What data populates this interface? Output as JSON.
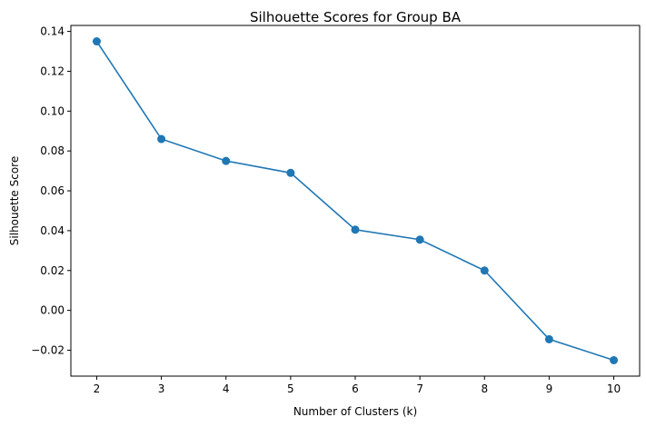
{
  "chart_data": {
    "type": "line",
    "title": "Silhouette Scores for Group BA",
    "xlabel": "Number of Clusters (k)",
    "ylabel": "Silhouette Score",
    "x": [
      2,
      3,
      4,
      5,
      6,
      7,
      8,
      9,
      10
    ],
    "series": [
      {
        "values": [
          0.135,
          0.086,
          0.075,
          0.069,
          0.0405,
          0.0355,
          0.02,
          -0.0145,
          -0.025
        ],
        "color": "#1f77b4",
        "marker": "circle"
      }
    ],
    "xticks": [
      "2",
      "3",
      "4",
      "5",
      "6",
      "7",
      "8",
      "9",
      "10"
    ],
    "yticks": [
      "−0.02",
      "0.00",
      "0.02",
      "0.04",
      "0.06",
      "0.08",
      "0.10",
      "0.12",
      "0.14"
    ],
    "ytick_values": [
      -0.02,
      0.0,
      0.02,
      0.04,
      0.06,
      0.08,
      0.1,
      0.12,
      0.14
    ],
    "xlim": [
      1.6,
      10.4
    ],
    "ylim": [
      -0.033,
      0.143
    ],
    "grid": false,
    "legend": "none"
  }
}
